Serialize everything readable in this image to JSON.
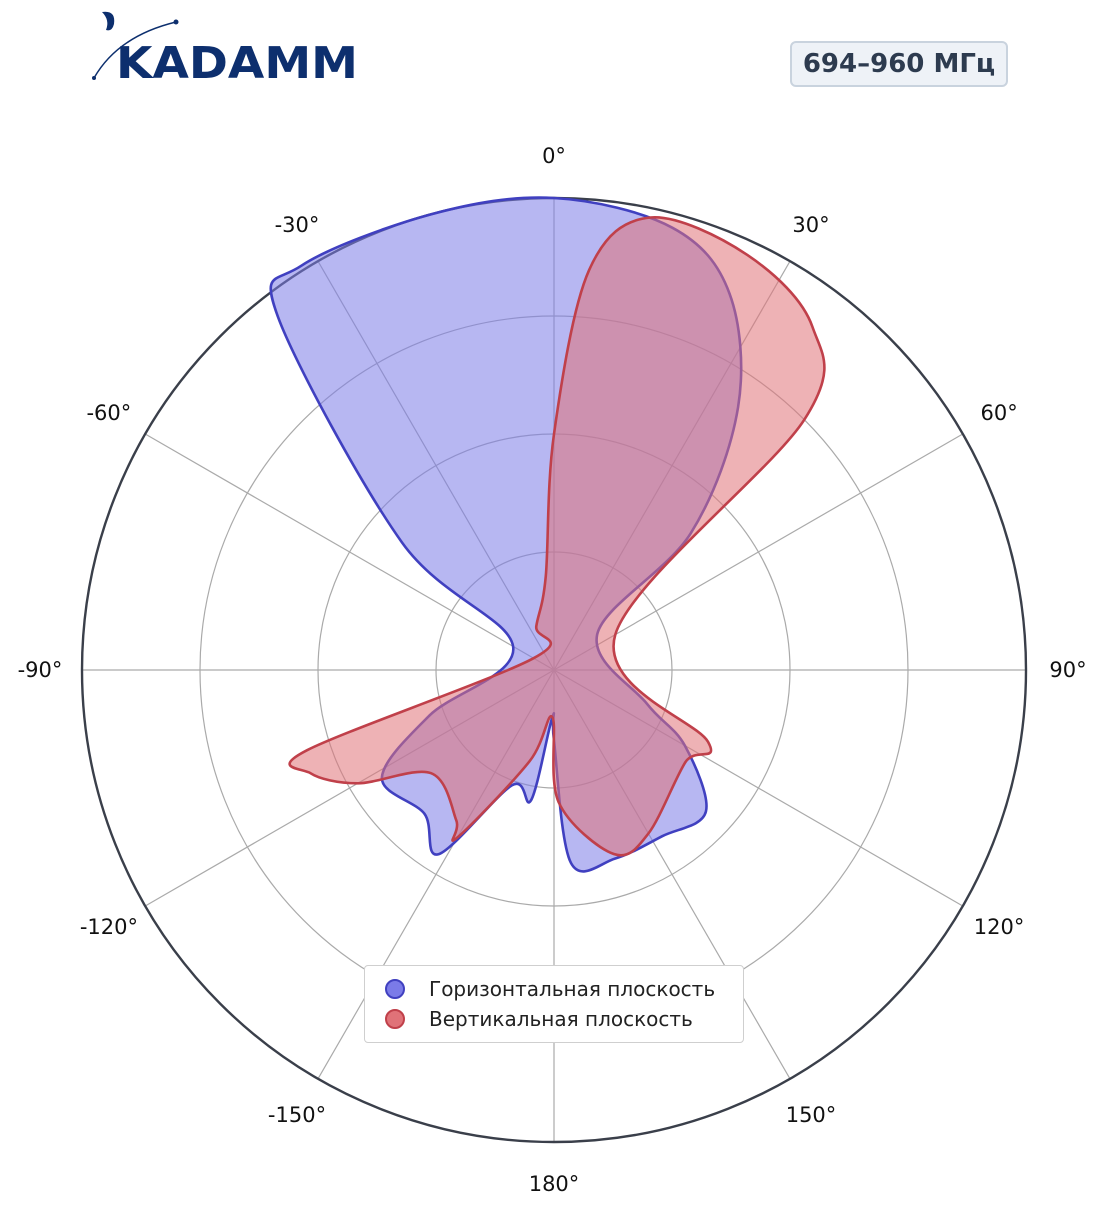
{
  "logo": {
    "text": "KADAMM",
    "color": "#0d2f6e"
  },
  "badge": {
    "label": "694–960 МГц"
  },
  "chart_data": {
    "type": "polar-area",
    "theta_unit": "degrees",
    "angle_ticks": [
      "0°",
      "30°",
      "60°",
      "90°",
      "120°",
      "150°",
      "180°",
      "-150°",
      "-120°",
      "-90°",
      "-60°",
      "-30°"
    ],
    "radial_rings": 4,
    "grid": true,
    "legend_position": "bottom-center",
    "series": [
      {
        "name": "Горизонтальная плоскость",
        "color": "#4040c0",
        "fill": "#7b7be8",
        "points": [
          [
            0,
            1.0
          ],
          [
            15,
            0.97
          ],
          [
            25,
            0.88
          ],
          [
            35,
            0.68
          ],
          [
            45,
            0.41
          ],
          [
            50,
            0.12
          ],
          [
            110,
            0.21
          ],
          [
            120,
            0.32
          ],
          [
            133,
            0.44
          ],
          [
            147,
            0.42
          ],
          [
            162,
            0.42
          ],
          [
            175,
            0.41
          ],
          [
            180,
            0.15
          ],
          [
            182,
            0.1
          ],
          [
            190,
            0.28
          ],
          [
            200,
            0.26
          ],
          [
            212,
            0.46
          ],
          [
            222,
            0.41
          ],
          [
            238,
            0.43
          ],
          [
            250,
            0.28
          ],
          [
            300,
            0.1
          ],
          [
            310,
            0.42
          ],
          [
            322,
            0.95
          ],
          [
            328,
            1.01
          ],
          [
            345,
            1.0
          ],
          [
            360,
            1.0
          ]
        ]
      },
      {
        "name": "Вертикальная плоскость",
        "color": "#c0404a",
        "fill": "#e07278",
        "points": [
          [
            0,
            0.5
          ],
          [
            5,
            0.85
          ],
          [
            12,
            0.98
          ],
          [
            25,
            0.97
          ],
          [
            37,
            0.91
          ],
          [
            45,
            0.75
          ],
          [
            60,
            0.15
          ],
          [
            115,
            0.36
          ],
          [
            125,
            0.34
          ],
          [
            150,
            0.4
          ],
          [
            162,
            0.41
          ],
          [
            178,
            0.28
          ],
          [
            182,
            0.1
          ],
          [
            195,
            0.2
          ],
          [
            210,
            0.41
          ],
          [
            213,
            0.38
          ],
          [
            230,
            0.34
          ],
          [
            240,
            0.48
          ],
          [
            247,
            0.56
          ],
          [
            252,
            0.55
          ],
          [
            300,
            0.05
          ],
          [
            338,
            0.1
          ],
          [
            355,
            0.2
          ],
          [
            360,
            0.5
          ]
        ]
      }
    ]
  }
}
